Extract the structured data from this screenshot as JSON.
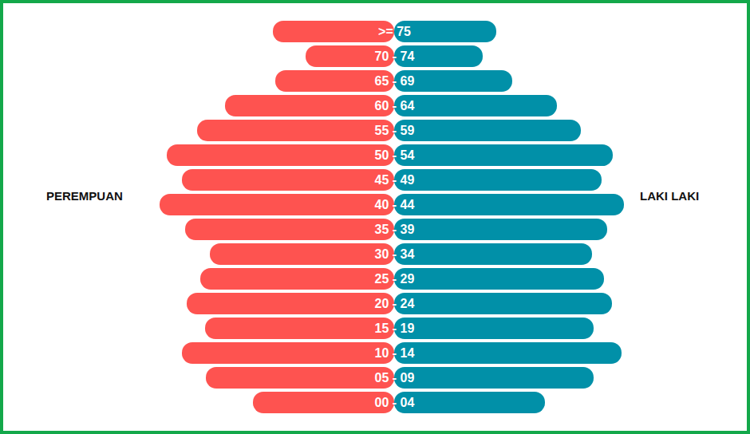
{
  "chart_data": {
    "type": "bar",
    "orientation": "horizontal",
    "tick_labels": "y",
    "categories": [
      ">= 75",
      "70 - 74",
      "65 - 69",
      "60 - 64",
      "55 - 59",
      "50 - 54",
      "45 - 49",
      "40 - 44",
      "35 - 39",
      "30 - 34",
      "25 - 29",
      "20 - 24",
      "15 - 19",
      "10 - 14",
      "05 - 09",
      "00 - 04"
    ],
    "series": [
      {
        "name": "PEREMPUAN",
        "color": "#fe5350",
        "values": [
          152,
          111,
          149,
          212,
          247,
          285,
          266,
          294,
          262,
          231,
          243,
          260,
          237,
          266,
          236,
          177
        ]
      },
      {
        "name": "LAKI LAKI",
        "color": "#0190a8",
        "values": [
          128,
          111,
          148,
          204,
          234,
          274,
          260,
          288,
          267,
          248,
          263,
          273,
          250,
          285,
          250,
          189
        ]
      }
    ],
    "xlim": [
      0,
      300
    ]
  }
}
